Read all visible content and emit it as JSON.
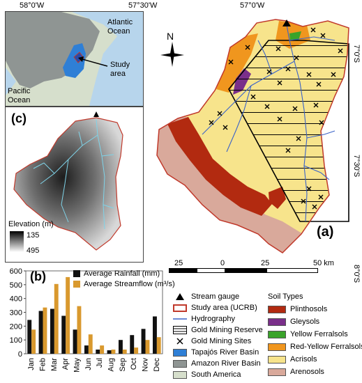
{
  "coords": {
    "top": [
      "58°0'W",
      "57°30'W",
      "57°0'W"
    ],
    "right": [
      "7°0'S",
      "7°30'S",
      "8°0'S"
    ]
  },
  "inset_a": {
    "ocean_labels": [
      "Atlantic Ocean",
      "Pacific Ocean"
    ],
    "arrow_label": "Study area"
  },
  "panel_labels": {
    "a": "(a)",
    "b": "(b)",
    "c": "(c)"
  },
  "north_label": "N",
  "elevation": {
    "title": "Elevation (m)",
    "max": "135",
    "min": "495"
  },
  "scalebar": {
    "ticks": [
      "25",
      "0",
      "25",
      "50 km"
    ]
  },
  "legend": {
    "symbols": [
      {
        "label": "Stream gauge",
        "icon": "triangle-icon"
      },
      {
        "label": "Study area (UCRB)",
        "color": "#c0392b"
      },
      {
        "label": "Hydrography",
        "color": "#3a63c8"
      },
      {
        "label": "Gold Mining Reserve",
        "icon": "hatched-box"
      },
      {
        "label": "Gold Mining Sites",
        "icon": "cross-icon"
      },
      {
        "label": "Tapajós River Basin",
        "color": "#2f7fd6"
      },
      {
        "label": "Amazon River Basin",
        "color": "#8f9593"
      },
      {
        "label": "South America",
        "color": "#d6dfcc"
      }
    ],
    "soil_title": "Soil Types",
    "soils": [
      {
        "label": "Plinthosols",
        "color": "#b22a10"
      },
      {
        "label": "Gleysols",
        "color": "#7a2f8a"
      },
      {
        "label": "Yellow Ferralsols",
        "color": "#3aa32a"
      },
      {
        "label": "Red-Yellow Ferralsols",
        "color": "#f0961e"
      },
      {
        "label": "Acrisols",
        "color": "#f7e48c"
      },
      {
        "label": "Arenosols",
        "color": "#d9a99b"
      }
    ]
  },
  "chart_data": {
    "type": "bar",
    "categories": [
      "Jan",
      "Feb",
      "Mar",
      "Apr",
      "May",
      "Jun",
      "Jul",
      "Aug",
      "Sep",
      "Oct",
      "Nov",
      "Dec"
    ],
    "series": [
      {
        "name": "Average Rainfall (mm)",
        "color": "#111111",
        "values": [
          245,
          310,
          325,
          275,
          175,
          60,
          30,
          25,
          100,
          135,
          180,
          270
        ]
      },
      {
        "name": "Average Streamflow (m³/s)",
        "color": "#d9992e",
        "values": [
          175,
          335,
          505,
          555,
          345,
          140,
          60,
          30,
          30,
          45,
          100,
          120
        ]
      }
    ],
    "yticks": [
      "0",
      "100",
      "200",
      "300",
      "400",
      "500",
      "600"
    ],
    "ylim": [
      0,
      600
    ]
  }
}
